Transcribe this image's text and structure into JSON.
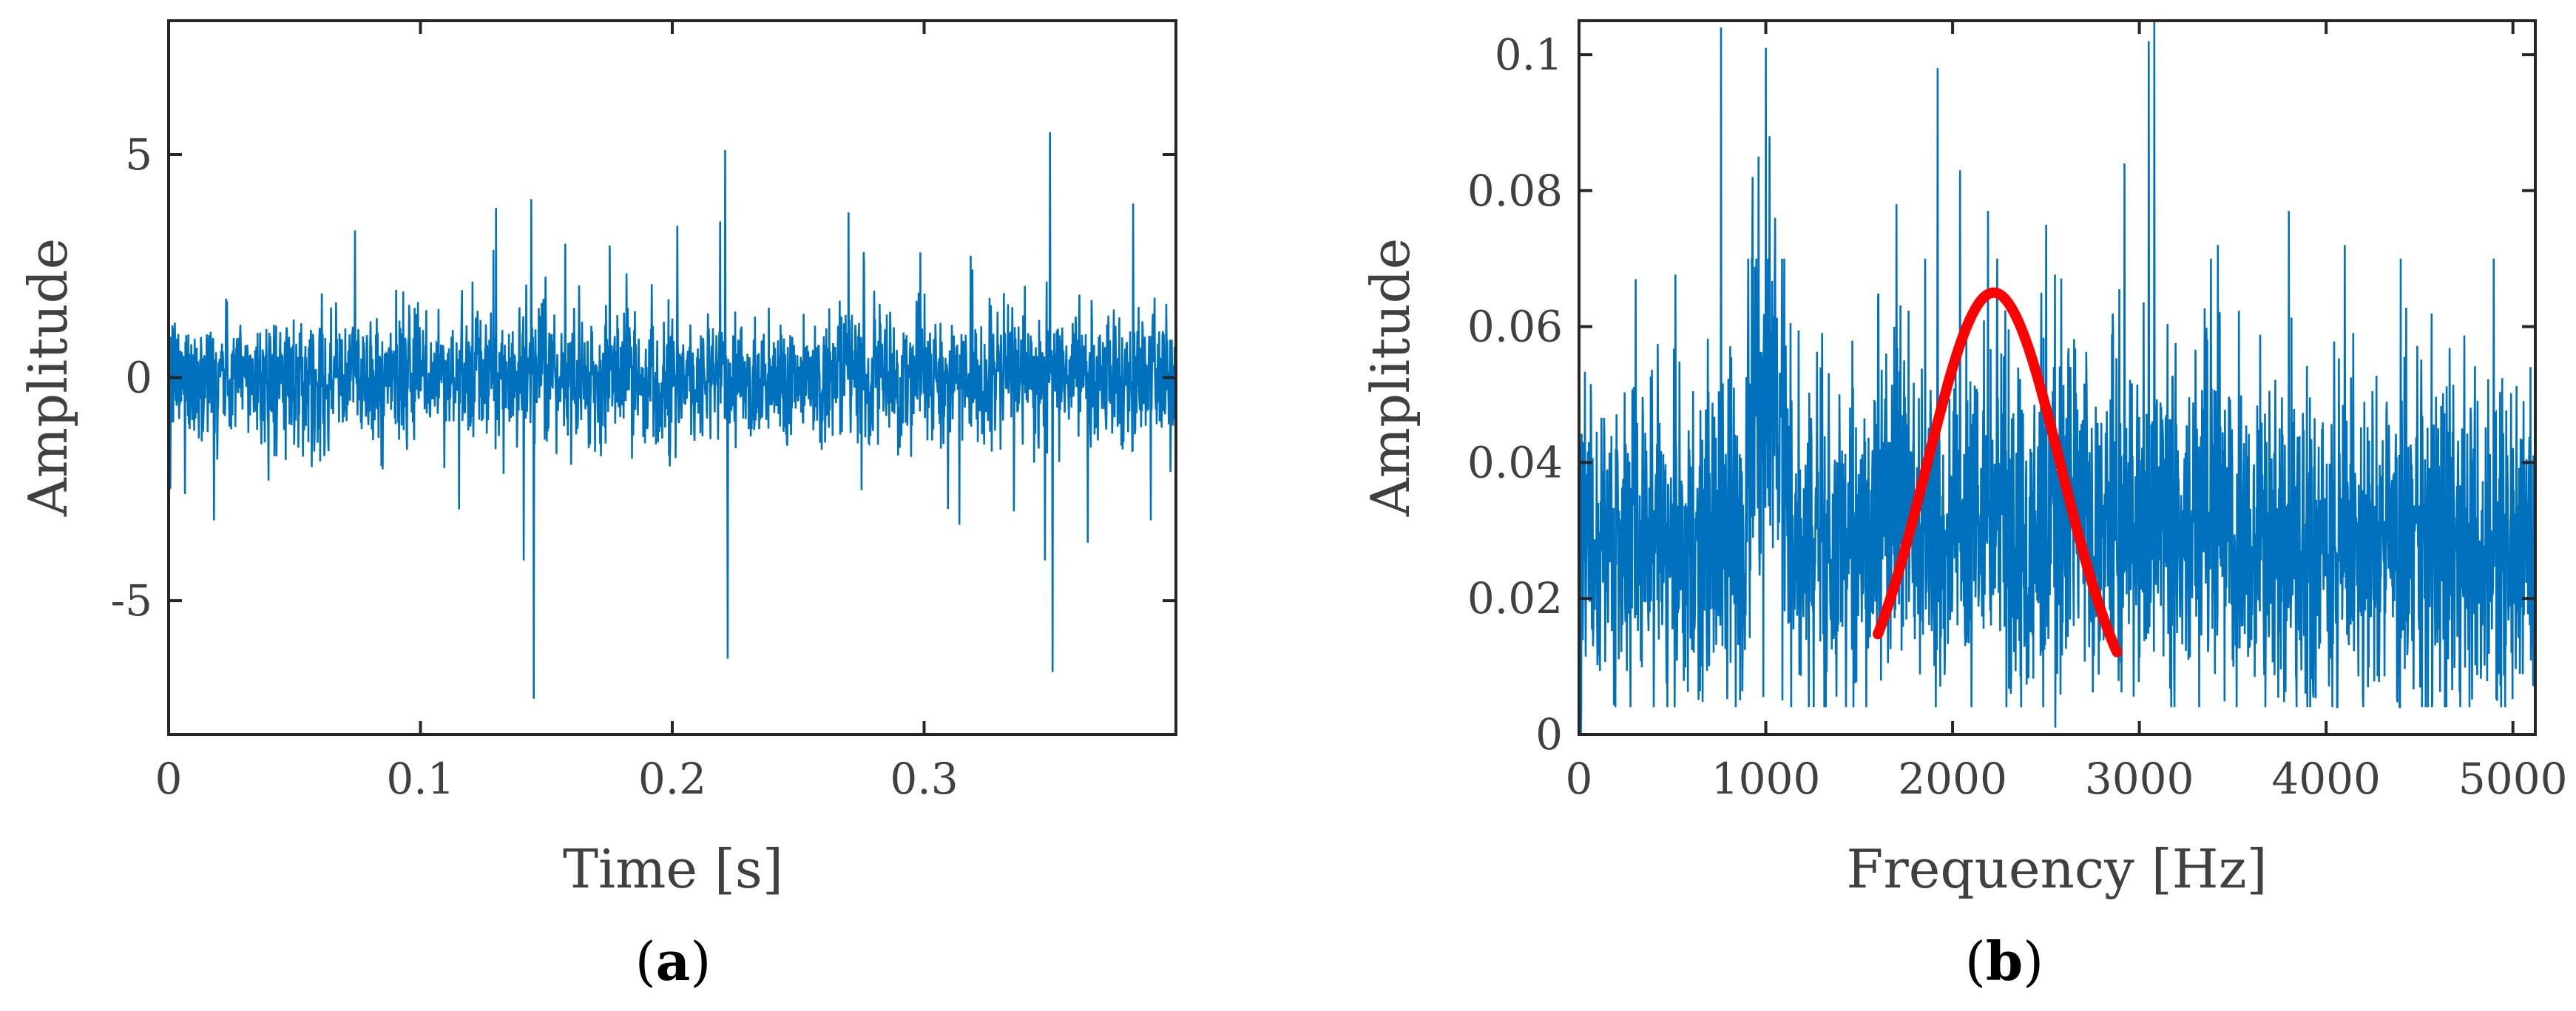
{
  "colors": {
    "signal": "#0072BD",
    "envelope": "#FF0000",
    "axis": "#262626",
    "text": "#404040"
  },
  "chart_data": [
    {
      "type": "line",
      "panel": "a",
      "caption_letter": "a",
      "xlabel": "Time [s]",
      "ylabel": "Amplitude",
      "xlim": [
        0,
        0.4
      ],
      "ylim": [
        -8,
        8
      ],
      "xticks": [
        0,
        0.1,
        0.2,
        0.3
      ],
      "xtick_labels": [
        "0",
        "0.1",
        "0.2",
        "0.3"
      ],
      "yticks": [
        -5,
        0,
        5
      ],
      "ytick_labels": [
        "-5",
        "0",
        "5"
      ],
      "grid": false,
      "series": [
        {
          "noise_amplitude": 1.3,
          "spikes": [
            {
              "x": 0.0006,
              "y": -2.5
            },
            {
              "x": 0.018,
              "y": -3.2
            },
            {
              "x": 0.074,
              "y": 3.3
            },
            {
              "x": 0.13,
              "y": 3.8
            },
            {
              "x": 0.141,
              "y": -4.1
            },
            {
              "x": 0.144,
              "y": 4.0
            },
            {
              "x": 0.145,
              "y": -7.2
            },
            {
              "x": 0.202,
              "y": 3.4
            },
            {
              "x": 0.219,
              "y": 3.5
            },
            {
              "x": 0.221,
              "y": 5.1
            },
            {
              "x": 0.222,
              "y": -6.3
            },
            {
              "x": 0.27,
              "y": 3.7
            },
            {
              "x": 0.314,
              "y": -3.3
            },
            {
              "x": 0.348,
              "y": -4.1
            },
            {
              "x": 0.35,
              "y": 5.5
            },
            {
              "x": 0.351,
              "y": -6.6
            },
            {
              "x": 0.365,
              "y": -3.7
            },
            {
              "x": 0.383,
              "y": 3.9
            },
            {
              "x": 0.39,
              "y": -3.2
            }
          ]
        }
      ]
    },
    {
      "type": "line",
      "panel": "b",
      "caption_letter": "b",
      "xlabel": "Frequency [Hz]",
      "ylabel": "Amplitude",
      "xlim": [
        0,
        5120
      ],
      "ylim": [
        0,
        0.105
      ],
      "xticks": [
        0,
        1000,
        2000,
        3000,
        4000,
        5000
      ],
      "xtick_labels": [
        "0",
        "1000",
        "2000",
        "3000",
        "4000",
        "5000"
      ],
      "yticks": [
        0,
        0.02,
        0.04,
        0.06,
        0.08,
        0.1
      ],
      "ytick_labels": [
        "0",
        "0.02",
        "0.04",
        "0.06",
        "0.08",
        "0.1"
      ],
      "grid": false,
      "series": [
        {
          "baseline": 0.028,
          "noise_amplitude": 0.012,
          "spikes": [
            {
              "x": 10,
              "y": 0.0
            },
            {
              "x": 760,
              "y": 0.104
            },
            {
              "x": 930,
              "y": 0.082
            },
            {
              "x": 960,
              "y": 0.085
            },
            {
              "x": 1000,
              "y": 0.101
            },
            {
              "x": 1020,
              "y": 0.088
            },
            {
              "x": 1050,
              "y": 0.076
            },
            {
              "x": 1700,
              "y": 0.078
            },
            {
              "x": 1920,
              "y": 0.098
            },
            {
              "x": 2040,
              "y": 0.083
            },
            {
              "x": 2190,
              "y": 0.077
            },
            {
              "x": 2500,
              "y": 0.075
            },
            {
              "x": 2550,
              "y": 0.001
            },
            {
              "x": 2920,
              "y": 0.084
            },
            {
              "x": 3050,
              "y": 0.102
            },
            {
              "x": 3080,
              "y": 0.105
            },
            {
              "x": 3420,
              "y": 0.072
            },
            {
              "x": 3800,
              "y": 0.077
            },
            {
              "x": 4100,
              "y": 0.072
            }
          ]
        },
        {
          "type": "gaussian-envelope",
          "x_start": 1600,
          "x_end": 2880,
          "peak_x": 2220,
          "peak_y": 0.065,
          "sigma": 360,
          "offset": 0.0
        }
      ]
    }
  ]
}
